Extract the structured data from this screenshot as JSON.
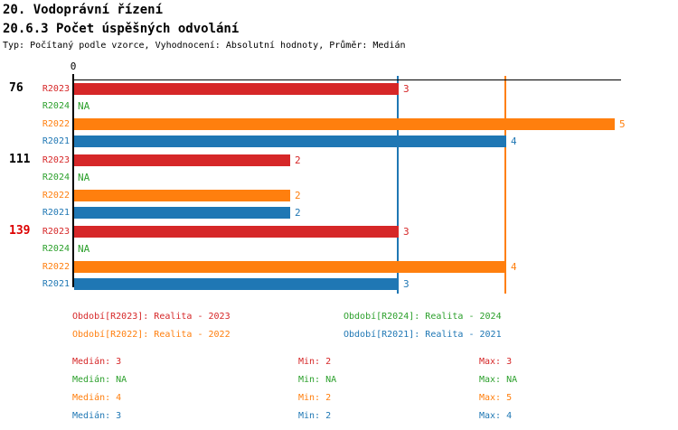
{
  "header": {
    "title": "20. Vodoprávní řízení",
    "subtitle": "20.6.3 Počet úspěšných odvolání",
    "meta": "Typ: Počítaný podle vzorce, Vyhodnocení: Absolutní hodnoty, Průměr: Medián"
  },
  "colors": {
    "R2023": "#d62728",
    "R2024": "#2ca02c",
    "R2022": "#ff7f0e",
    "R2021": "#1f77b4",
    "axis": "#000000",
    "highlight": "#dd0000"
  },
  "chart_data": {
    "type": "bar",
    "orientation": "horizontal",
    "title": "20.6.3 Počet úspěšných odvolání",
    "xlim": [
      0,
      5.07
    ],
    "x_ticks": [
      {
        "value": 0,
        "label": "0"
      }
    ],
    "na_text": "NA",
    "series_order": [
      "R2023",
      "R2024",
      "R2022",
      "R2021"
    ],
    "groups": [
      {
        "label": "76",
        "label_color": "#000000",
        "values": [
          3,
          "NA",
          5,
          4
        ]
      },
      {
        "label": "111",
        "label_color": "#000000",
        "values": [
          2,
          "NA",
          2,
          2
        ]
      },
      {
        "label": "139",
        "label_color": "#dd0000",
        "values": [
          3,
          "NA",
          4,
          3
        ]
      }
    ],
    "average_lines": [
      {
        "series": "R2022",
        "value": 4
      },
      {
        "series": "R2021",
        "value": 3
      }
    ]
  },
  "legend": {
    "items": [
      {
        "series": "R2023",
        "label": "Období[R2023]: Realita - 2023"
      },
      {
        "series": "R2024",
        "label": "Období[R2024]: Realita - 2024"
      },
      {
        "series": "R2022",
        "label": "Období[R2022]: Realita - 2022"
      },
      {
        "series": "R2021",
        "label": "Období[R2021]: Realita - 2021"
      }
    ]
  },
  "stats": {
    "rows": [
      {
        "series": "R2023",
        "cells": [
          "Medián: 3",
          "Min: 2",
          "Max: 3"
        ]
      },
      {
        "series": "R2024",
        "cells": [
          "Medián: NA",
          "Min: NA",
          "Max: NA"
        ]
      },
      {
        "series": "R2022",
        "cells": [
          "Medián: 4",
          "Min: 2",
          "Max: 5"
        ]
      },
      {
        "series": "R2021",
        "cells": [
          "Medián: 3",
          "Min: 2",
          "Max: 4"
        ]
      }
    ]
  }
}
